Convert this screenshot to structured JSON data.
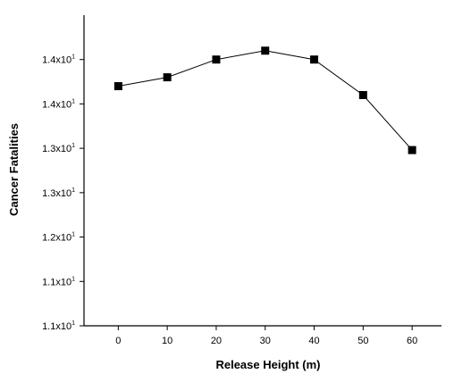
{
  "chart_data": {
    "type": "line",
    "xlabel": "Release Height (m)",
    "ylabel": "Cancer Fatalities",
    "x": [
      0,
      10,
      20,
      30,
      40,
      50,
      60
    ],
    "y": [
      13.7,
      13.8,
      14.0,
      14.1,
      14.0,
      13.6,
      12.98
    ],
    "xlim": [
      -7,
      66
    ],
    "ylim": [
      11.0,
      14.5
    ],
    "x_ticks": [
      "0",
      "10",
      "20",
      "30",
      "40",
      "50",
      "60"
    ],
    "y_ticks": [
      {
        "value": 11.0,
        "mantissa": "1.1x10",
        "exponent": "1"
      },
      {
        "value": 11.5,
        "mantissa": "1.1x10",
        "exponent": "1"
      },
      {
        "value": 12.0,
        "mantissa": "1.2x10",
        "exponent": "1"
      },
      {
        "value": 12.5,
        "mantissa": "1.3x10",
        "exponent": "1"
      },
      {
        "value": 13.0,
        "mantissa": "1.3x10",
        "exponent": "1"
      },
      {
        "value": 13.5,
        "mantissa": "1.4x10",
        "exponent": "1"
      },
      {
        "value": 14.0,
        "mantissa": "1.4x10",
        "exponent": "1"
      }
    ],
    "marker": "square",
    "grid": false,
    "color": "#000000"
  }
}
